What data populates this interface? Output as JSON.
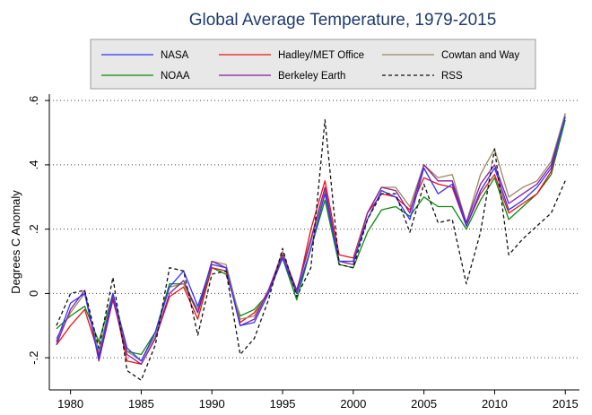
{
  "chart_data": {
    "type": "line",
    "title": "Global Average Temperature, 1979-2015",
    "xlabel": "",
    "ylabel": "Degrees C Anomaly",
    "xlim": [
      1978.5,
      2016
    ],
    "ylim": [
      -0.3,
      0.62
    ],
    "x_ticks": [
      1980,
      1985,
      1990,
      1995,
      2000,
      2005,
      2010,
      2015
    ],
    "x_tick_labels": [
      "1980",
      "1985",
      "1990",
      "1995",
      "2000",
      "2005",
      "2010",
      "2015"
    ],
    "y_ticks": [
      -0.2,
      0,
      0.2,
      0.4,
      0.6
    ],
    "y_tick_labels": [
      "-.2",
      "0",
      ".2",
      ".4",
      ".6"
    ],
    "grid": "horizontal-dotted",
    "legend_position": "top",
    "x": [
      1979,
      1980,
      1981,
      1982,
      1983,
      1984,
      1985,
      1986,
      1987,
      1988,
      1989,
      1990,
      1991,
      1992,
      1993,
      1994,
      1995,
      1996,
      1997,
      1998,
      1999,
      2000,
      2001,
      2002,
      2003,
      2004,
      2005,
      2006,
      2007,
      2008,
      2009,
      2010,
      2011,
      2012,
      2013,
      2014,
      2015
    ],
    "series": [
      {
        "name": "NASA",
        "color": "#3333ff",
        "dash": "solid",
        "values": [
          -0.15,
          -0.03,
          0.0,
          -0.2,
          0.0,
          -0.17,
          -0.21,
          -0.12,
          0.02,
          0.07,
          -0.04,
          0.09,
          0.08,
          -0.1,
          -0.09,
          0.0,
          0.11,
          0.0,
          0.14,
          0.31,
          0.1,
          0.1,
          0.23,
          0.32,
          0.3,
          0.23,
          0.39,
          0.31,
          0.34,
          0.21,
          0.32,
          0.39,
          0.26,
          0.29,
          0.33,
          0.39,
          0.55
        ]
      },
      {
        "name": "NOAA",
        "color": "#0a8a0a",
        "dash": "solid",
        "values": [
          -0.11,
          -0.07,
          -0.04,
          -0.15,
          0.0,
          -0.18,
          -0.19,
          -0.12,
          0.03,
          0.03,
          -0.06,
          0.08,
          0.06,
          -0.07,
          -0.05,
          0.0,
          0.11,
          -0.02,
          0.14,
          0.29,
          0.09,
          0.08,
          0.19,
          0.26,
          0.27,
          0.24,
          0.3,
          0.27,
          0.27,
          0.2,
          0.29,
          0.36,
          0.23,
          0.27,
          0.31,
          0.37,
          0.54
        ]
      },
      {
        "name": "Hadley/MET Office",
        "color": "#ee1111",
        "dash": "solid",
        "values": [
          -0.16,
          -0.1,
          -0.05,
          -0.19,
          -0.01,
          -0.21,
          -0.22,
          -0.14,
          -0.01,
          0.02,
          -0.08,
          0.08,
          0.07,
          -0.09,
          -0.06,
          0.0,
          0.13,
          0.0,
          0.2,
          0.35,
          0.12,
          0.11,
          0.25,
          0.31,
          0.3,
          0.26,
          0.36,
          0.34,
          0.33,
          0.21,
          0.31,
          0.37,
          0.25,
          0.28,
          0.31,
          0.38,
          0.56
        ]
      },
      {
        "name": "Berkeley Earth",
        "color": "#8b1a9a",
        "dash": "solid",
        "values": [
          -0.16,
          -0.05,
          0.01,
          -0.21,
          -0.02,
          -0.19,
          -0.22,
          -0.14,
          0.0,
          0.04,
          -0.06,
          0.1,
          0.08,
          -0.1,
          -0.08,
          0.01,
          0.12,
          0.01,
          0.17,
          0.33,
          0.1,
          0.09,
          0.25,
          0.33,
          0.32,
          0.25,
          0.4,
          0.35,
          0.35,
          0.22,
          0.34,
          0.4,
          0.28,
          0.31,
          0.34,
          0.4,
          0.55
        ]
      },
      {
        "name": "Cowtan and Way",
        "color": "#968a60",
        "dash": "solid",
        "values": [
          -0.14,
          -0.06,
          0.0,
          -0.18,
          0.0,
          -0.18,
          -0.21,
          -0.13,
          0.02,
          0.03,
          -0.05,
          0.1,
          0.09,
          -0.08,
          -0.07,
          0.01,
          0.13,
          0.01,
          0.16,
          0.32,
          0.1,
          0.1,
          0.25,
          0.33,
          0.33,
          0.27,
          0.4,
          0.36,
          0.37,
          0.22,
          0.37,
          0.45,
          0.3,
          0.33,
          0.35,
          0.41,
          0.56
        ]
      },
      {
        "name": "RSS",
        "color": "#111111",
        "dash": "dashed",
        "values": [
          -0.1,
          0.0,
          0.01,
          -0.17,
          0.05,
          -0.24,
          -0.27,
          -0.16,
          0.08,
          0.07,
          -0.13,
          0.06,
          0.07,
          -0.19,
          -0.14,
          -0.02,
          0.14,
          -0.01,
          0.08,
          0.54,
          0.09,
          0.08,
          0.23,
          0.31,
          0.31,
          0.19,
          0.34,
          0.22,
          0.23,
          0.03,
          0.19,
          0.45,
          0.12,
          0.17,
          0.21,
          0.25,
          0.35
        ]
      }
    ]
  }
}
